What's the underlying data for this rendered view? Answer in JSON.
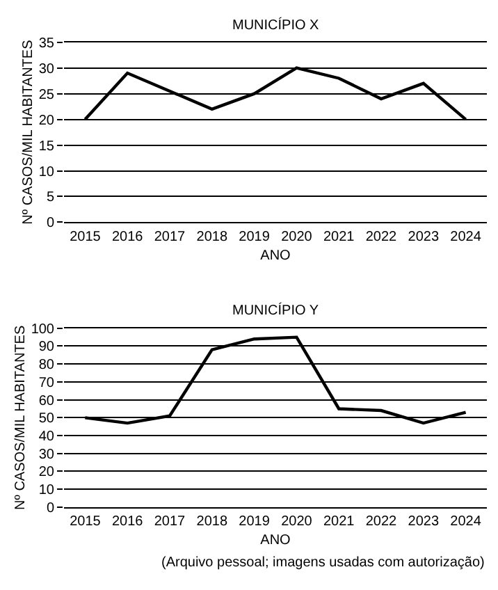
{
  "chart_data": [
    {
      "type": "line",
      "title": "MUNICÍPIO X",
      "xlabel": "ANO",
      "ylabel": "Nº CASOS/MIL HABITANTES",
      "categories": [
        "2015",
        "2016",
        "2017",
        "2018",
        "2019",
        "2020",
        "2021",
        "2022",
        "2023",
        "2024"
      ],
      "series": [
        {
          "color": "#000000",
          "values": [
            20,
            29,
            25.5,
            22,
            25,
            30,
            28,
            24,
            27,
            20
          ]
        }
      ],
      "ylim": [
        0,
        35
      ],
      "yticks": [
        0,
        5,
        10,
        15,
        20,
        25,
        30,
        35
      ],
      "grid": "y",
      "marker": "none",
      "line_style": "solid"
    },
    {
      "type": "line",
      "title": "MUNICÍPIO Y",
      "xlabel": "ANO",
      "ylabel": "Nº CASOS/MIL HABITANTES",
      "categories": [
        "2015",
        "2016",
        "2017",
        "2018",
        "2019",
        "2020",
        "2021",
        "2022",
        "2023",
        "2024"
      ],
      "series": [
        {
          "color": "#000000",
          "values": [
            50,
            47,
            51,
            88,
            94,
            95,
            55,
            54,
            47,
            53
          ]
        }
      ],
      "ylim": [
        0,
        100
      ],
      "yticks": [
        0,
        10,
        20,
        30,
        40,
        50,
        60,
        70,
        80,
        90,
        100
      ],
      "grid": "y",
      "marker": "none",
      "line_style": "solid",
      "annotations": [
        "(Arquivo pessoal; imagens usadas com autorização)"
      ]
    }
  ]
}
